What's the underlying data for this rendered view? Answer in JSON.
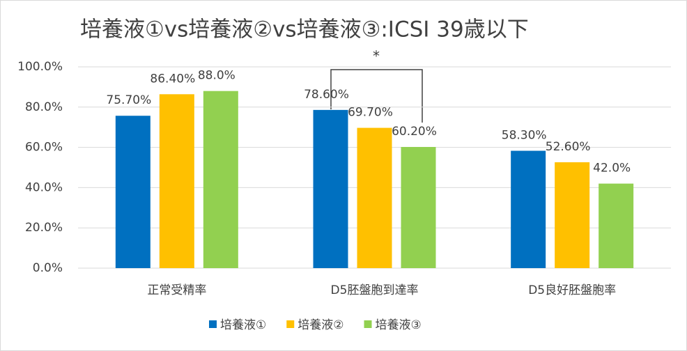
{
  "chart_data": {
    "type": "bar",
    "title": "培養液①vs培養液②vs培養液③:ICSI 39歳以下",
    "categories": [
      "正常受精率",
      "D5胚盤胞到達率",
      "D5良好胚盤胞率"
    ],
    "series": [
      {
        "name": "培養液①",
        "color": "#0070c0",
        "values": [
          75.7,
          78.6,
          58.3
        ],
        "value_labels": [
          "75.70%",
          "78.60%",
          "58.30%"
        ]
      },
      {
        "name": "培養液②",
        "color": "#ffc000",
        "values": [
          86.4,
          69.7,
          52.6
        ],
        "value_labels": [
          "86.40%",
          "69.70%",
          "52.60%"
        ]
      },
      {
        "name": "培養液③",
        "color": "#92d050",
        "values": [
          88.0,
          60.2,
          42.0
        ],
        "value_labels": [
          "88.0%",
          "60.20%",
          "42.0%"
        ]
      }
    ],
    "annotation": "*",
    "ylim": [
      0,
      100
    ],
    "yticks": [
      {
        "value": 0,
        "label": "0.0%"
      },
      {
        "value": 20,
        "label": "20.0%"
      },
      {
        "value": 40,
        "label": "40.0%"
      },
      {
        "value": 60,
        "label": "60.0%"
      },
      {
        "value": 80,
        "label": "80.0%"
      },
      {
        "value": 100,
        "label": "100.0%"
      }
    ],
    "grid": true,
    "legend": "bottom"
  }
}
